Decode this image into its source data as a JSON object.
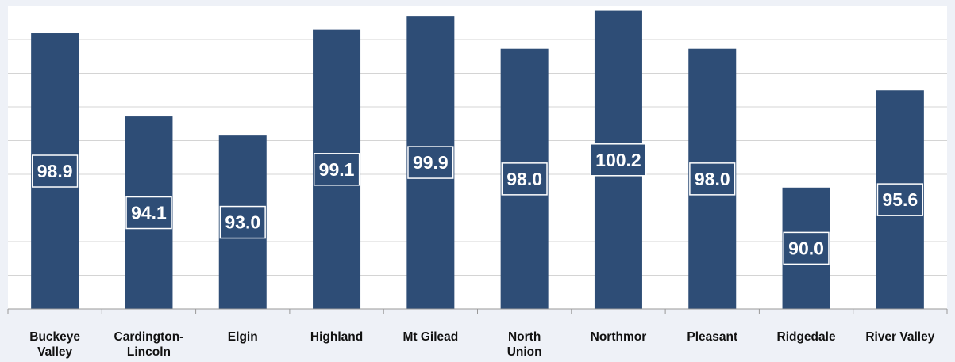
{
  "chart_data": {
    "type": "bar",
    "title": "",
    "xlabel": "",
    "ylabel": "",
    "categories": [
      [
        "Buckeye",
        "Valley"
      ],
      [
        "Cardington-",
        "Lincoln"
      ],
      [
        "Elgin"
      ],
      [
        "Highland"
      ],
      [
        "Mt Gilead"
      ],
      [
        "North",
        "Union"
      ],
      [
        "Northmor"
      ],
      [
        "Pleasant"
      ],
      [
        "Ridgedale"
      ],
      [
        "River Valley"
      ]
    ],
    "values": [
      98.9,
      94.1,
      93.0,
      99.1,
      99.9,
      98.0,
      100.2,
      98.0,
      90.0,
      95.6
    ],
    "value_labels": [
      "98.9",
      "94.1",
      "93.0",
      "99.1",
      "99.9",
      "98.0",
      "100.2",
      "98.0",
      "90.0",
      "95.6"
    ],
    "ylim": [
      83.0,
      100.5
    ],
    "gridlines": true,
    "y_tick_labels_shown": false,
    "legend": "none",
    "colors": {
      "bar": "#2e4d76",
      "label_box": "#2e4d76",
      "label_text": "#ffffff",
      "background": "#eef1f7",
      "plot_background": "#ffffff",
      "gridline": "#d4d4d4",
      "axis": "#999999",
      "tick_text": "#111111"
    }
  }
}
